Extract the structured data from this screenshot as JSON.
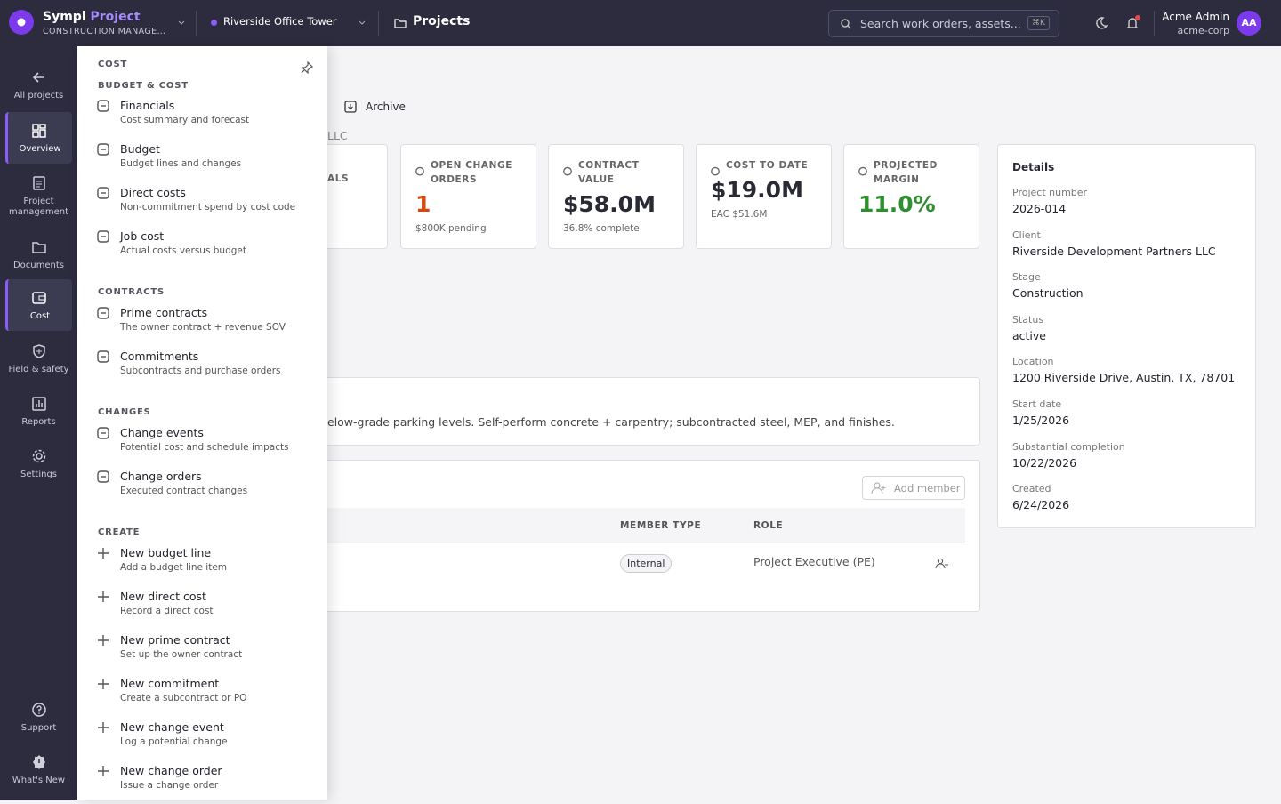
{
  "header": {
    "brand": "Sympl",
    "brand_accent": "Project",
    "subtitle": "CONSTRUCTION MANAGEM...",
    "project": "Riverside Office Tower",
    "breadcrumb": "Projects",
    "search_placeholder": "Search work orders, assets...",
    "shortcut": "⌘K",
    "user_name": "Acme Admin",
    "user_org": "acme-corp",
    "avatar": "AA"
  },
  "sidebar": {
    "items": [
      "All projects",
      "Overview",
      "Project management",
      "Documents",
      "Cost",
      "Field & safety",
      "Reports",
      "Settings"
    ],
    "footer": [
      "Support",
      "What's New"
    ]
  },
  "flyout": {
    "title": "COST",
    "sections": [
      {
        "heading": "BUDGET & COST",
        "items": [
          {
            "label": "Financials",
            "description": "Cost summary and forecast"
          },
          {
            "label": "Budget",
            "description": "Budget lines and changes"
          },
          {
            "label": "Direct costs",
            "description": "Non-commitment spend by cost code"
          },
          {
            "label": "Job cost",
            "description": "Actual costs versus budget"
          }
        ]
      },
      {
        "heading": "CONTRACTS",
        "items": [
          {
            "label": "Prime contracts",
            "description": "The owner contract + revenue SOV"
          },
          {
            "label": "Commitments",
            "description": "Subcontracts and purchase orders"
          }
        ]
      },
      {
        "heading": "CHANGES",
        "items": [
          {
            "label": "Change events",
            "description": "Potential cost and schedule impacts"
          },
          {
            "label": "Change orders",
            "description": "Executed contract changes"
          }
        ]
      },
      {
        "heading": "CREATE",
        "items": [
          {
            "label": "New budget line",
            "description": "Add a budget line item"
          },
          {
            "label": "New direct cost",
            "description": "Record a direct cost"
          },
          {
            "label": "New prime contract",
            "description": "Set up the owner contract"
          },
          {
            "label": "New commitment",
            "description": "Create a subcontract or PO"
          },
          {
            "label": "New change event",
            "description": "Log a potential change"
          },
          {
            "label": "New change order",
            "description": "Issue a change order"
          }
        ]
      }
    ]
  },
  "main": {
    "archive": "Archive",
    "client_fragment": "LLC",
    "card_fragment": "ALS",
    "cards": [
      {
        "label": "OPEN CHANGE ORDERS",
        "value": "1",
        "note": "$800K pending"
      },
      {
        "label": "CONTRACT VALUE",
        "value": "$58.0M",
        "note": "36.8% complete"
      },
      {
        "label": "COST TO DATE",
        "value": "$19.0M",
        "note": "EAC $51.6M"
      },
      {
        "label": "PROJECTED MARGIN",
        "value": "11.0%"
      }
    ],
    "description": "elow-grade parking levels. Self-perform concrete + carpentry; subcontracted steel, MEP, and finishes.",
    "team": {
      "add_member": "Add member",
      "columns": [
        "MEMBER TYPE",
        "ROLE"
      ],
      "rows": [
        [
          "Internal",
          "Project Executive (PE)"
        ]
      ]
    }
  },
  "details": {
    "title": "Details",
    "fields": [
      {
        "label": "Project number",
        "value": "2026-014"
      },
      {
        "label": "Client",
        "value": "Riverside Development Partners LLC"
      },
      {
        "label": "Stage",
        "value": "Construction"
      },
      {
        "label": "Status",
        "value": "active"
      },
      {
        "label": "Location",
        "value": "1200 Riverside Drive, Austin, TX, 78701"
      },
      {
        "label": "Start date",
        "value": "1/25/2026"
      },
      {
        "label": "Substantial completion",
        "value": "10/22/2026"
      },
      {
        "label": "Created",
        "value": "6/24/2026"
      }
    ]
  }
}
